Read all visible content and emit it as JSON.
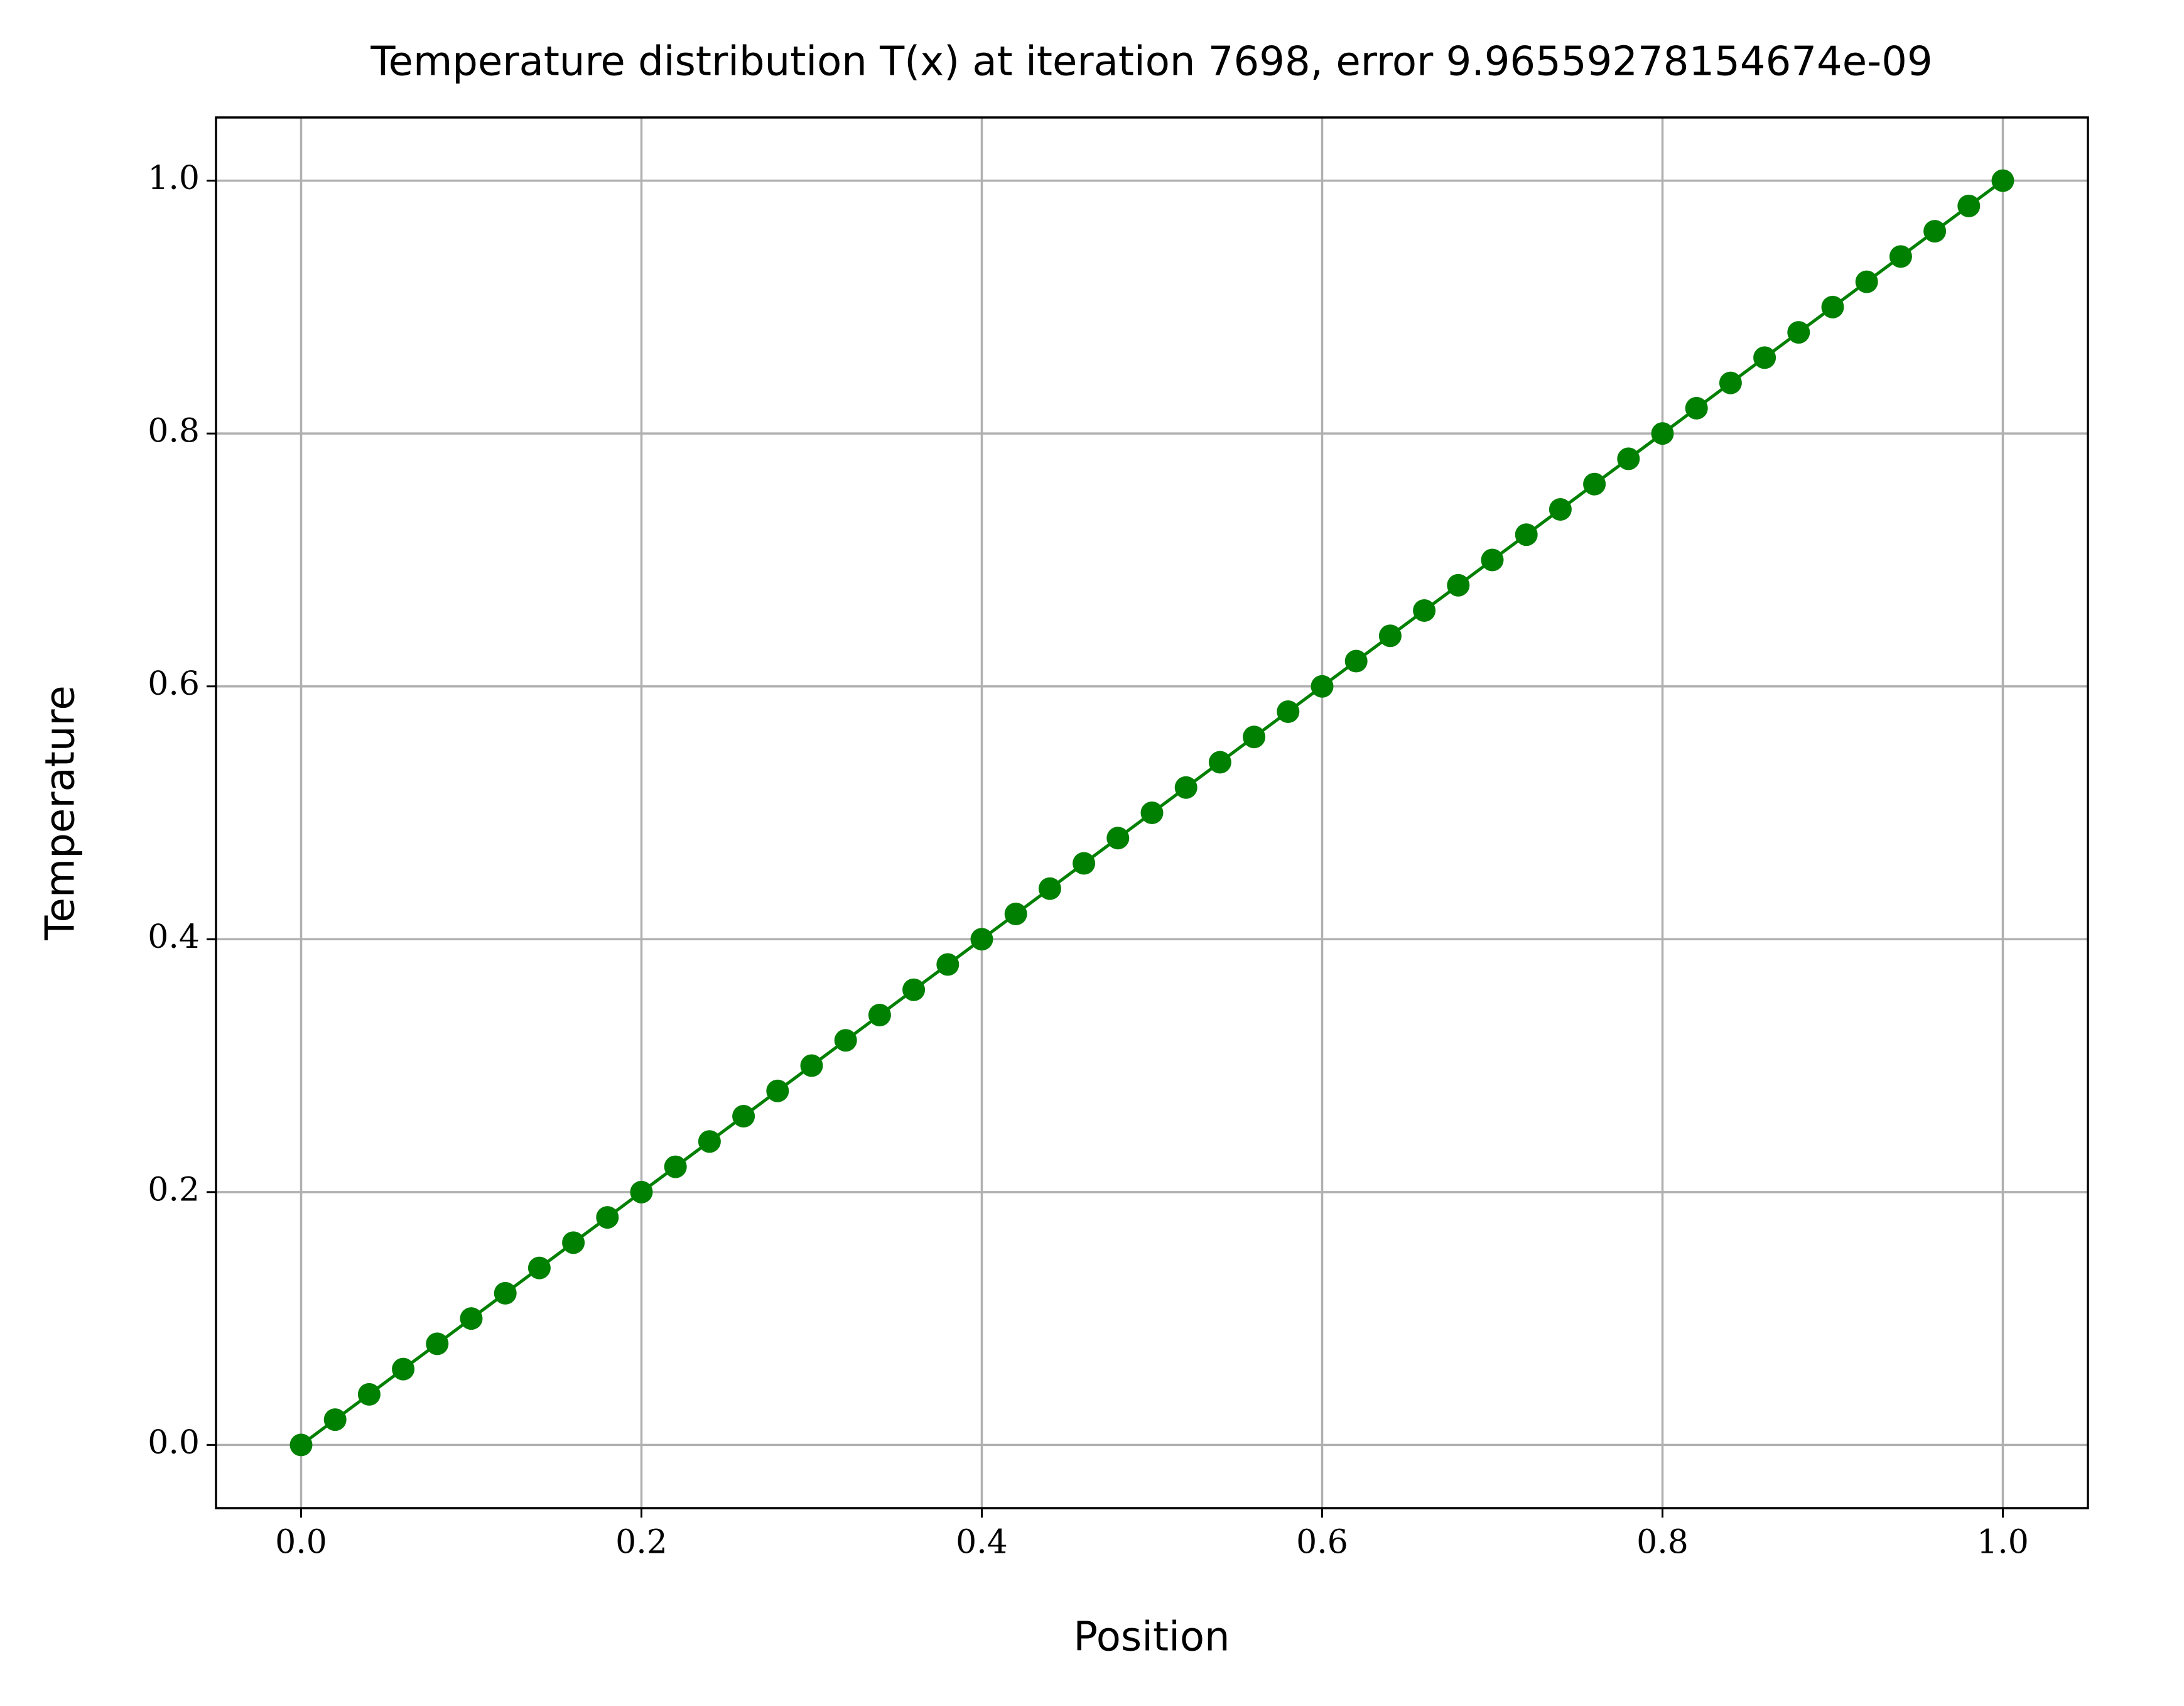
{
  "chart_data": {
    "type": "line",
    "title": "Temperature distribution T(x) at iteration 7698, error 9.96559278154674e-09",
    "x_label": "Position",
    "y_label": "Temperature",
    "x": [
      0,
      0.02,
      0.04,
      0.06,
      0.08,
      0.1,
      0.12,
      0.14,
      0.16,
      0.18,
      0.2,
      0.22,
      0.24,
      0.26,
      0.28,
      0.3,
      0.32,
      0.34,
      0.36,
      0.38,
      0.4,
      0.42,
      0.44,
      0.46,
      0.48,
      0.5,
      0.52,
      0.54,
      0.56,
      0.58,
      0.6,
      0.62,
      0.64,
      0.66,
      0.68,
      0.7,
      0.72,
      0.74,
      0.76,
      0.78,
      0.8,
      0.82,
      0.84,
      0.86,
      0.88,
      0.9,
      0.92,
      0.94,
      0.96,
      0.98,
      1
    ],
    "series": [
      {
        "color": "#008000",
        "values": [
          0,
          0.02,
          0.04,
          0.06,
          0.08,
          0.1,
          0.12,
          0.14,
          0.16,
          0.18,
          0.2,
          0.22,
          0.24,
          0.26,
          0.28,
          0.3,
          0.32,
          0.34,
          0.36,
          0.38,
          0.4,
          0.42,
          0.44,
          0.46,
          0.48,
          0.5,
          0.52,
          0.54,
          0.56,
          0.58,
          0.6,
          0.62,
          0.64,
          0.66,
          0.68,
          0.7,
          0.72,
          0.74,
          0.76,
          0.78,
          0.8,
          0.82,
          0.84,
          0.86,
          0.88,
          0.9,
          0.92,
          0.94,
          0.96,
          0.98,
          1
        ]
      }
    ],
    "xlim": [
      -0.05,
      1.05
    ],
    "ylim": [
      -0.05,
      1.05
    ],
    "xticks": [
      {
        "value": 0,
        "label": "0.0"
      },
      0.2,
      0.4,
      0.6,
      0.8,
      {
        "value": 1,
        "label": "1.0"
      }
    ],
    "yticks": [
      {
        "value": 0,
        "label": "0.0"
      },
      0.2,
      0.4,
      0.6,
      0.8,
      {
        "value": 1,
        "label": "1.0"
      }
    ],
    "grid": true
  }
}
